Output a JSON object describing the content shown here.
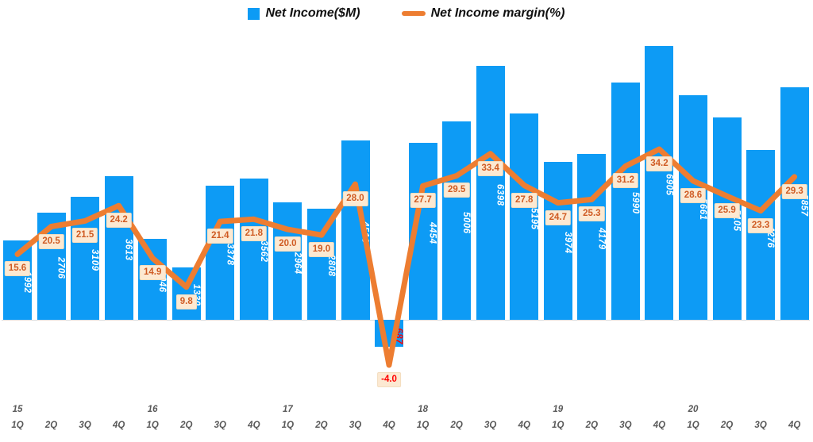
{
  "legend": [
    {
      "label": "Net Income($M)",
      "marker": "square"
    },
    {
      "label": "Net Income margin(%)",
      "marker": "line"
    }
  ],
  "colors": {
    "bar": "#0d9bf5",
    "line": "#ed7d31",
    "point_label_bg": "#fce9d2",
    "point_label_text": "#cf5b23",
    "negative_text": "#ff0000",
    "axis_text": "#595959"
  },
  "chart_data": {
    "type": "combo-bar-line",
    "categories": [
      {
        "year": "15",
        "quarter": "1Q"
      },
      {
        "year": "",
        "quarter": "2Q"
      },
      {
        "year": "",
        "quarter": "3Q"
      },
      {
        "year": "",
        "quarter": "4Q"
      },
      {
        "year": "16",
        "quarter": "1Q"
      },
      {
        "year": "",
        "quarter": "2Q"
      },
      {
        "year": "",
        "quarter": "3Q"
      },
      {
        "year": "",
        "quarter": "4Q"
      },
      {
        "year": "17",
        "quarter": "1Q"
      },
      {
        "year": "",
        "quarter": "2Q"
      },
      {
        "year": "",
        "quarter": "3Q"
      },
      {
        "year": "",
        "quarter": "4Q"
      },
      {
        "year": "18",
        "quarter": "1Q"
      },
      {
        "year": "",
        "quarter": "2Q"
      },
      {
        "year": "",
        "quarter": "3Q"
      },
      {
        "year": "",
        "quarter": "4Q"
      },
      {
        "year": "19",
        "quarter": "1Q"
      },
      {
        "year": "",
        "quarter": "2Q"
      },
      {
        "year": "",
        "quarter": "3Q"
      },
      {
        "year": "",
        "quarter": "4Q"
      },
      {
        "year": "20",
        "quarter": "1Q"
      },
      {
        "year": "",
        "quarter": "2Q"
      },
      {
        "year": "",
        "quarter": "3Q"
      },
      {
        "year": "",
        "quarter": "4Q"
      }
    ],
    "series": [
      {
        "name": "Net Income($M)",
        "type": "bar",
        "values": [
          1992,
          2706,
          3109,
          3613,
          2046,
          1330,
          3378,
          3562,
          2964,
          2808,
          4516,
          -687,
          4454,
          5006,
          6398,
          5195,
          3974,
          4179,
          5990,
          6905,
          5661,
          5105,
          4276,
          5857
        ]
      },
      {
        "name": "Net Income margin(%)",
        "type": "line",
        "values": [
          15.6,
          20.5,
          21.5,
          24.2,
          14.9,
          9.8,
          21.4,
          21.8,
          20.0,
          19.0,
          28.0,
          -4.0,
          27.7,
          29.5,
          33.4,
          27.8,
          24.7,
          25.3,
          31.2,
          34.2,
          28.6,
          25.9,
          23.3,
          29.3
        ]
      }
    ],
    "legend_position": "top-center",
    "grid": false,
    "value_labels": "on"
  }
}
